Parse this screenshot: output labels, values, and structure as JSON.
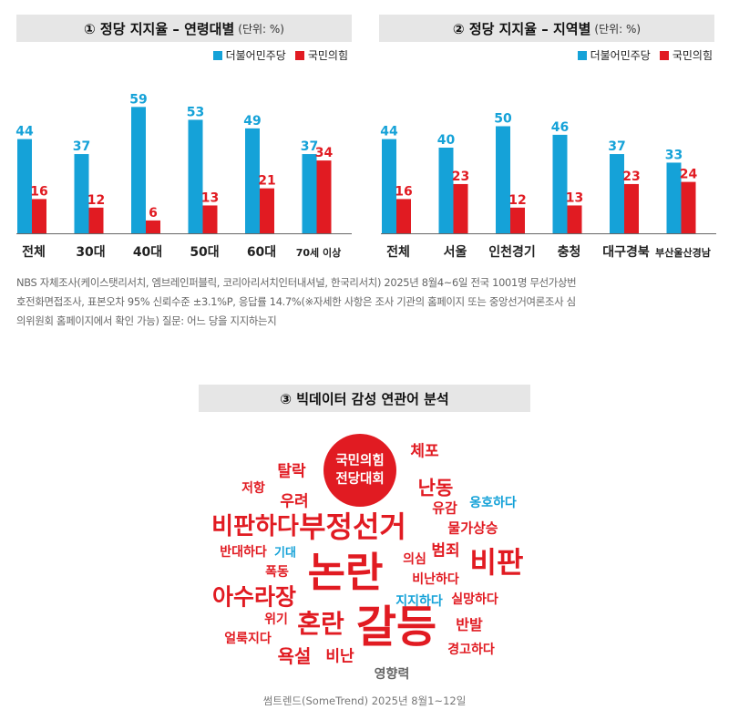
{
  "colors": {
    "party_a": "#15a2d8",
    "party_b": "#e11b22",
    "cloud_red": "#e11b22",
    "cloud_blue": "#15a2d8",
    "cloud_gray": "#666666"
  },
  "legend": {
    "party_a": "더불어민주당",
    "party_b": "국민의힘"
  },
  "panel1": {
    "title": "① 정당 지지율 – 연령대별",
    "unit": "(단위: %)"
  },
  "panel2": {
    "title": "② 정당 지지율 – 지역별",
    "unit": "(단위: %)"
  },
  "panel3": {
    "title": "③ 빅데이터 감성 연관어 분석"
  },
  "chart_data": [
    {
      "type": "bar",
      "title": "① 정당 지지율 – 연령대별",
      "unit": "(단위: %)",
      "categories": [
        "전체",
        "30대",
        "40대",
        "50대",
        "60대",
        "70세 이상"
      ],
      "series": [
        {
          "name": "더불어민주당",
          "values": [
            44,
            37,
            59,
            53,
            49,
            37
          ]
        },
        {
          "name": "국민의힘",
          "values": [
            16,
            12,
            6,
            13,
            21,
            34
          ]
        }
      ],
      "ylim": [
        0,
        60
      ],
      "grid": false,
      "legend": "top-right"
    },
    {
      "type": "bar",
      "title": "② 정당 지지율 – 지역별",
      "unit": "(단위: %)",
      "categories": [
        "전체",
        "서울",
        "인천경기",
        "충청",
        "대구경북",
        "부산울산경남"
      ],
      "series": [
        {
          "name": "더불어민주당",
          "values": [
            44,
            40,
            50,
            46,
            37,
            33
          ]
        },
        {
          "name": "국민의힘",
          "values": [
            16,
            23,
            12,
            13,
            23,
            24
          ]
        }
      ],
      "ylim": [
        0,
        60
      ],
      "grid": false,
      "legend": "top-right"
    }
  ],
  "note": {
    "line1": "NBS 자체조사(케이스탯리서치, 엠브레인퍼블릭, 코리아리서치인터내셔널, 한국리서치) 2025년 8월4~6일 전국 1001명 무선가상번",
    "line2": "호전화면접조사, 표본오차 95% 신뢰수준 ±3.1%P, 응답률 14.7%(※자세한 사항은 조사 기관의 홈페이지 또는 중앙선거여론조사 심",
    "line3": "의위원회 홈페이지에서 확인 가능) 질문: 어느 당을 지지하는지"
  },
  "cloud": {
    "center_line1": "국민의힘",
    "center_line2": "전당대회",
    "words": [
      {
        "text": "체포",
        "color": "red"
      },
      {
        "text": "탈락",
        "color": "red"
      },
      {
        "text": "저항",
        "color": "red"
      },
      {
        "text": "난동",
        "color": "red"
      },
      {
        "text": "우려",
        "color": "red"
      },
      {
        "text": "유감",
        "color": "red"
      },
      {
        "text": "옹호하다",
        "color": "blue"
      },
      {
        "text": "비판하다",
        "color": "red"
      },
      {
        "text": "부정선거",
        "color": "red"
      },
      {
        "text": "물가상승",
        "color": "red"
      },
      {
        "text": "반대하다",
        "color": "red"
      },
      {
        "text": "기대",
        "color": "blue"
      },
      {
        "text": "범죄",
        "color": "red"
      },
      {
        "text": "의심",
        "color": "red"
      },
      {
        "text": "비판",
        "color": "red"
      },
      {
        "text": "폭동",
        "color": "red"
      },
      {
        "text": "논란",
        "color": "red"
      },
      {
        "text": "비난하다",
        "color": "red"
      },
      {
        "text": "아수라장",
        "color": "red"
      },
      {
        "text": "지지하다",
        "color": "blue"
      },
      {
        "text": "실망하다",
        "color": "red"
      },
      {
        "text": "위기",
        "color": "red"
      },
      {
        "text": "혼란",
        "color": "red"
      },
      {
        "text": "갈등",
        "color": "red"
      },
      {
        "text": "반발",
        "color": "red"
      },
      {
        "text": "얼룩지다",
        "color": "red"
      },
      {
        "text": "경고하다",
        "color": "red"
      },
      {
        "text": "욕설",
        "color": "red"
      },
      {
        "text": "비난",
        "color": "red"
      },
      {
        "text": "영향력",
        "color": "gray"
      }
    ]
  },
  "source": "썸트렌드(SomeTrend) 2025년 8월1~12일"
}
